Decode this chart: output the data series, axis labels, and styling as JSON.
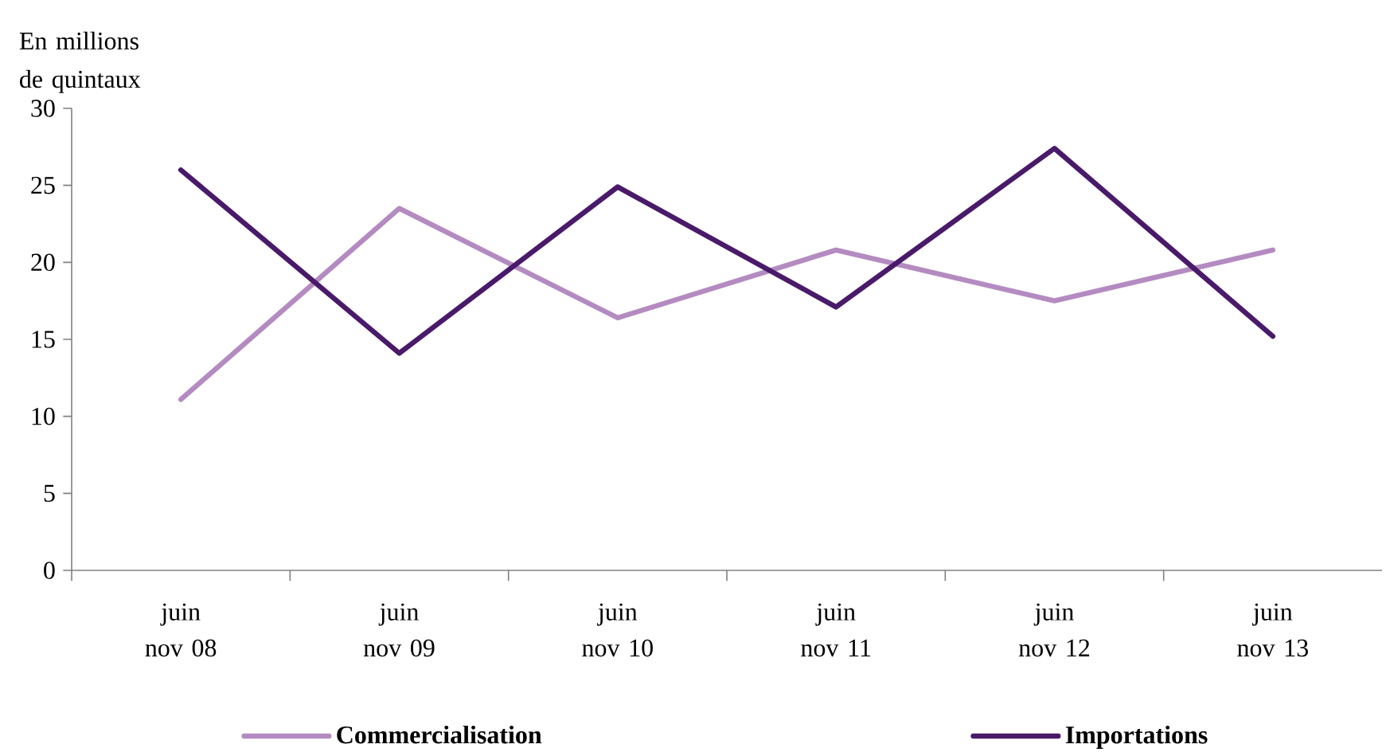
{
  "chart_data": {
    "type": "line",
    "ylabel": "En millions de quintaux",
    "categories": [
      "juin nov 08",
      "juin nov 09",
      "juin nov 10",
      "juin nov 11",
      "juin nov 12",
      "juin nov 13"
    ],
    "series": [
      {
        "name": "Commercialisation",
        "color": "#b48bc1",
        "values": [
          11.1,
          23.5,
          16.4,
          20.8,
          17.5,
          20.8
        ]
      },
      {
        "name": "Importations",
        "color": "#4a1a6a",
        "values": [
          26.0,
          14.1,
          24.9,
          17.1,
          27.4,
          15.2
        ]
      }
    ],
    "ylim": [
      0,
      30
    ],
    "yticks": [
      0,
      5,
      10,
      15,
      20,
      25,
      30
    ],
    "legend": "bottom",
    "marker": "none",
    "line_style": "solid"
  }
}
